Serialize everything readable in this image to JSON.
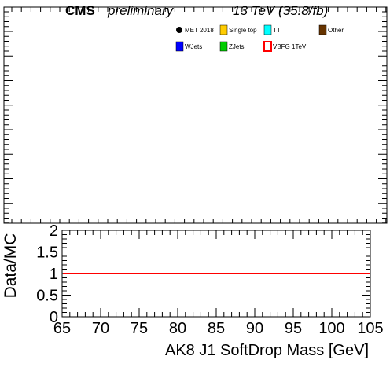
{
  "header": {
    "experiment": "CMS",
    "status": "preliminary",
    "lumi": "13 TeV (35.8/fb)"
  },
  "chart_data": [
    {
      "type": "bar",
      "panel": "main",
      "legend_placement": "top-right",
      "legend": [
        {
          "label": "MET 2018",
          "marker": "dot",
          "color": "#000000"
        },
        {
          "label": "Single top",
          "marker": "box",
          "color": "#ffcc00"
        },
        {
          "label": "TT",
          "marker": "box",
          "color": "#00ffff"
        },
        {
          "label": "Other",
          "marker": "box",
          "color": "#663300"
        },
        {
          "label": "WJets",
          "marker": "box",
          "color": "#0000ff"
        },
        {
          "label": "ZJets",
          "marker": "box",
          "color": "#00cc00"
        },
        {
          "label": "VBFG 1TeV",
          "marker": "open-box",
          "color": "#ff0000"
        }
      ],
      "series": [],
      "xlim": [
        65,
        105
      ],
      "tick_labels_shown": false
    },
    {
      "type": "line",
      "panel": "ratio",
      "ylabel": "Data/MC",
      "xlabel": "AK8 J1 SoftDrop Mass [GeV]",
      "xlim": [
        65,
        105
      ],
      "ylim": [
        0,
        2
      ],
      "x_ticks": [
        "65",
        "70",
        "75",
        "80",
        "85",
        "90",
        "95",
        "100",
        "105"
      ],
      "y_ticks": [
        "0",
        "0.5",
        "1",
        "1.5",
        "2"
      ],
      "reference_line": {
        "y": 1,
        "color": "#ff0000"
      },
      "series": []
    }
  ]
}
